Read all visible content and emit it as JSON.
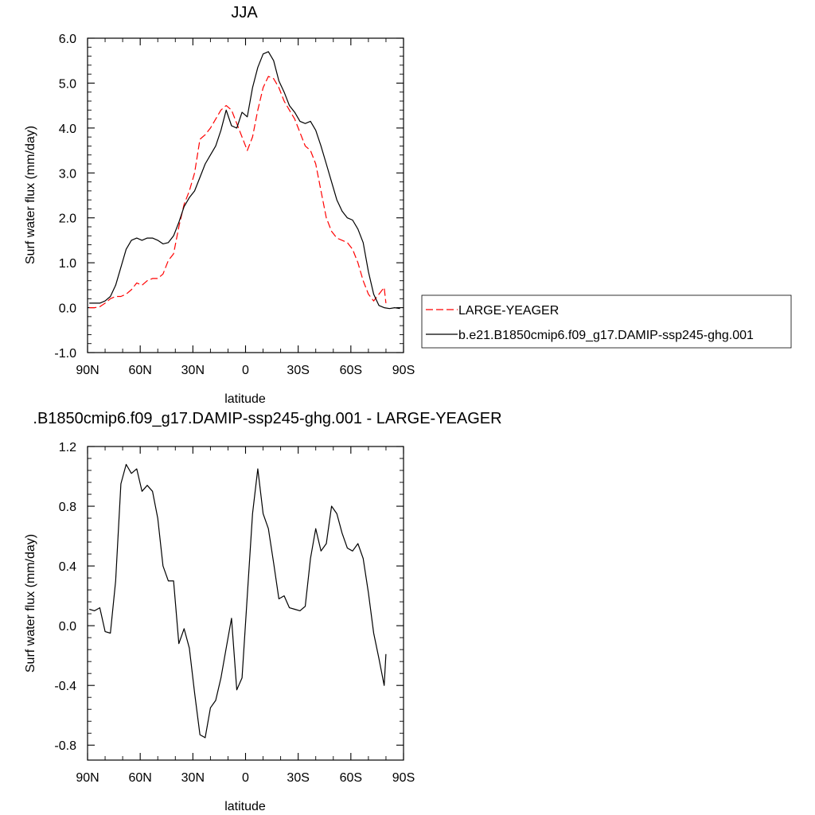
{
  "chart_data": [
    {
      "type": "line",
      "title": "JJA",
      "xlabel": "latitude",
      "ylabel": "Surf water flux (mm/day)",
      "xlim": [
        90,
        -90
      ],
      "ylim": [
        -1.0,
        6.0
      ],
      "xticks": [
        90,
        60,
        30,
        0,
        -30,
        -60,
        -90
      ],
      "xtick_labels": [
        "90N",
        "60N",
        "30N",
        "0",
        "30S",
        "60S",
        "90S"
      ],
      "yticks": [
        -1.0,
        0.0,
        1.0,
        2.0,
        3.0,
        4.0,
        5.0,
        6.0
      ],
      "ytick_labels": [
        "-1.0",
        "0.0",
        "1.0",
        "2.0",
        "3.0",
        "4.0",
        "5.0",
        "6.0"
      ],
      "grid": false,
      "legend_position": "right",
      "series": [
        {
          "name": "LARGE-YEAGER",
          "color": "#ff0000",
          "style": "dashed",
          "x": [
            89,
            86,
            83,
            80,
            77,
            74,
            71,
            68,
            65,
            62,
            59,
            56,
            53,
            50,
            47,
            44,
            41,
            38,
            35,
            32,
            29,
            26,
            23,
            20,
            17,
            14,
            11,
            8,
            5,
            2,
            -1,
            -4,
            -7,
            -10,
            -13,
            -16,
            -19,
            -22,
            -25,
            -28,
            -31,
            -34,
            -37,
            -40,
            -43,
            -46,
            -49,
            -52,
            -55,
            -58,
            -61,
            -64,
            -67,
            -70,
            -73,
            -76,
            -79,
            -80
          ],
          "values": [
            0.0,
            0.0,
            0.02,
            0.1,
            0.2,
            0.25,
            0.25,
            0.3,
            0.4,
            0.55,
            0.5,
            0.6,
            0.65,
            0.65,
            0.75,
            1.05,
            1.2,
            1.8,
            2.3,
            2.6,
            3.0,
            3.75,
            3.85,
            4.0,
            4.2,
            4.4,
            4.5,
            4.4,
            4.1,
            3.8,
            3.5,
            3.8,
            4.4,
            4.9,
            5.15,
            5.1,
            4.9,
            4.6,
            4.4,
            4.2,
            3.9,
            3.6,
            3.5,
            3.2,
            2.6,
            2.0,
            1.7,
            1.55,
            1.5,
            1.45,
            1.3,
            1.0,
            0.6,
            0.3,
            0.15,
            0.3,
            0.45,
            0.1
          ]
        },
        {
          "name": "b.e21.B1850cmip6.f09_g17.DAMIP-ssp245-ghg.001",
          "color": "#000000",
          "style": "solid",
          "x": [
            89,
            86,
            83,
            80,
            77,
            74,
            71,
            68,
            65,
            62,
            59,
            56,
            53,
            50,
            47,
            44,
            41,
            38,
            35,
            32,
            29,
            26,
            23,
            20,
            17,
            14,
            11,
            8,
            5,
            2,
            -1,
            -4,
            -7,
            -10,
            -13,
            -16,
            -19,
            -22,
            -25,
            -28,
            -31,
            -34,
            -37,
            -40,
            -43,
            -46,
            -49,
            -52,
            -55,
            -58,
            -61,
            -64,
            -67,
            -70,
            -73,
            -76,
            -79,
            -82,
            -85,
            -88
          ],
          "values": [
            0.1,
            0.1,
            0.1,
            0.15,
            0.25,
            0.5,
            0.9,
            1.3,
            1.5,
            1.55,
            1.5,
            1.55,
            1.55,
            1.5,
            1.42,
            1.45,
            1.6,
            1.9,
            2.25,
            2.45,
            2.6,
            2.9,
            3.2,
            3.4,
            3.6,
            3.95,
            4.4,
            4.05,
            4.0,
            4.35,
            4.25,
            4.9,
            5.35,
            5.65,
            5.7,
            5.5,
            5.05,
            4.8,
            4.5,
            4.35,
            4.15,
            4.1,
            4.15,
            3.95,
            3.6,
            3.2,
            2.8,
            2.4,
            2.15,
            2.0,
            1.95,
            1.75,
            1.45,
            0.8,
            0.3,
            0.05,
            0.0,
            -0.02,
            0.0,
            -0.02
          ]
        }
      ]
    },
    {
      "type": "line",
      "title": ".B1850cmip6.f09_g17.DAMIP-ssp245-ghg.001 - LARGE-YEAGER",
      "xlabel": "latitude",
      "ylabel": "Surf water flux (mm/day)",
      "xlim": [
        90,
        -90
      ],
      "ylim": [
        -0.9,
        1.2
      ],
      "xticks": [
        90,
        60,
        30,
        0,
        -30,
        -60,
        -90
      ],
      "xtick_labels": [
        "90N",
        "60N",
        "30N",
        "0",
        "30S",
        "60S",
        "90S"
      ],
      "yticks": [
        -0.8,
        -0.4,
        0.0,
        0.4,
        0.8,
        1.2
      ],
      "ytick_labels": [
        "-0.8",
        "-0.4",
        "0.0",
        "0.4",
        "0.8",
        "1.2"
      ],
      "grid": false,
      "series": [
        {
          "color": "#000000",
          "style": "solid",
          "x": [
            89,
            86,
            83,
            80,
            77,
            74,
            71,
            68,
            65,
            62,
            59,
            56,
            53,
            50,
            47,
            44,
            41,
            38,
            35,
            32,
            29,
            26,
            23,
            20,
            17,
            14,
            11,
            8,
            5,
            2,
            -1,
            -4,
            -7,
            -10,
            -13,
            -16,
            -19,
            -22,
            -25,
            -28,
            -31,
            -34,
            -37,
            -40,
            -43,
            -46,
            -49,
            -52,
            -55,
            -58,
            -61,
            -64,
            -67,
            -70,
            -73,
            -76,
            -79,
            -80
          ],
          "values": [
            0.11,
            0.1,
            0.12,
            -0.04,
            -0.05,
            0.3,
            0.95,
            1.08,
            1.02,
            1.05,
            0.9,
            0.94,
            0.9,
            0.72,
            0.4,
            0.3,
            0.3,
            -0.12,
            -0.02,
            -0.15,
            -0.45,
            -0.73,
            -0.75,
            -0.55,
            -0.5,
            -0.35,
            -0.15,
            0.05,
            -0.43,
            -0.35,
            0.2,
            0.75,
            1.05,
            0.75,
            0.65,
            0.42,
            0.18,
            0.2,
            0.12,
            0.11,
            0.1,
            0.13,
            0.45,
            0.65,
            0.5,
            0.55,
            0.8,
            0.75,
            0.62,
            0.52,
            0.5,
            0.55,
            0.45,
            0.22,
            -0.05,
            -0.22,
            -0.4,
            -0.19
          ]
        }
      ]
    }
  ]
}
